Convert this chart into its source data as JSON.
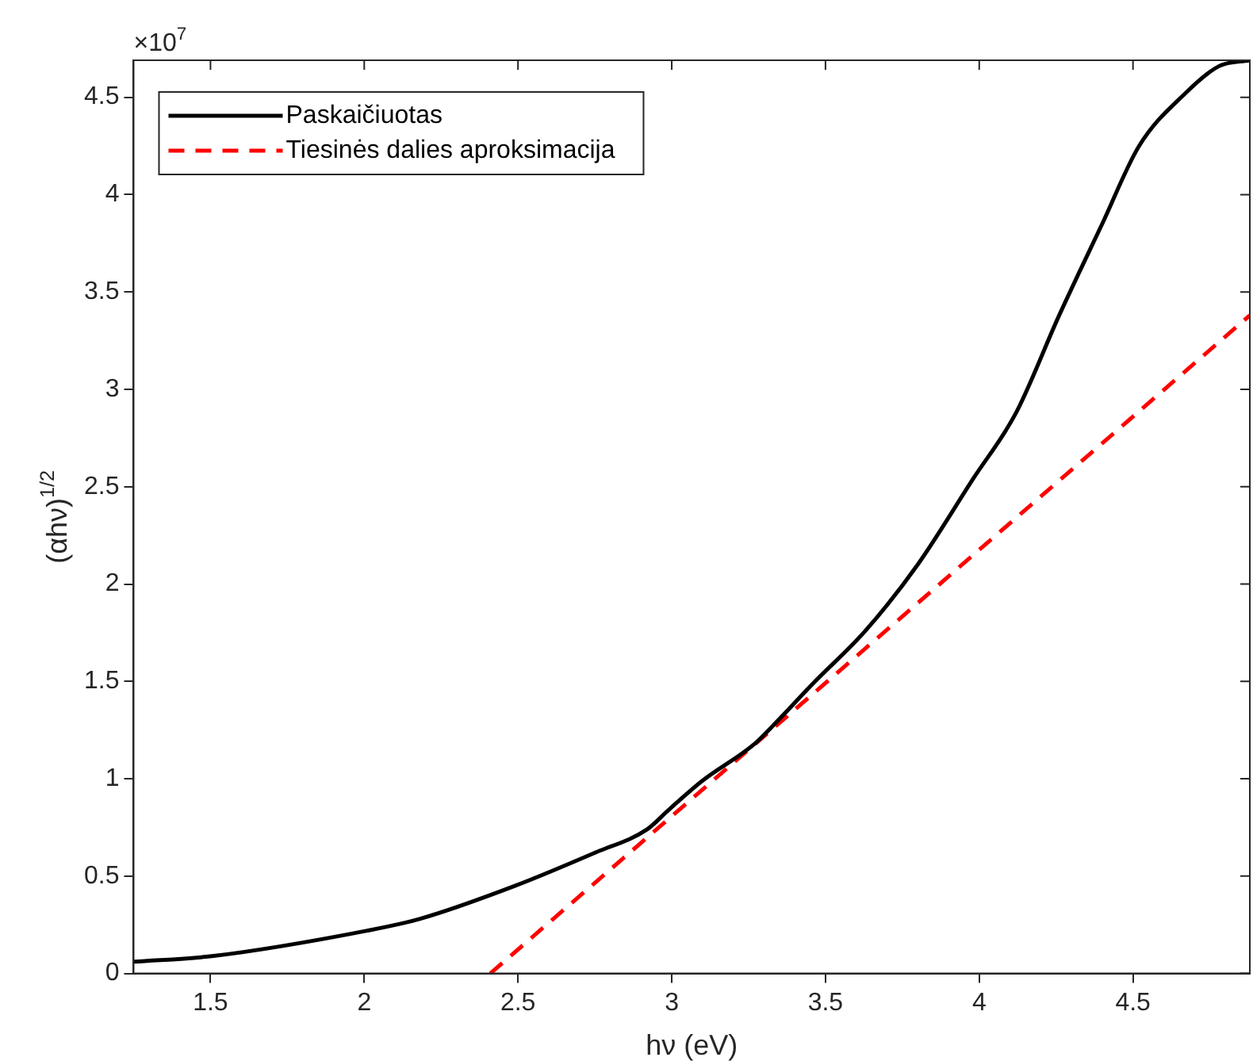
{
  "chart_data": {
    "type": "line",
    "xlabel": "hν (eV)",
    "ylabel": "(αhν)$^{1/2}$",
    "annotations": [
      "×10$^{7}$"
    ],
    "xlim": [
      1.25,
      4.88
    ],
    "xticks": [
      1.5,
      2,
      2.5,
      3,
      3.5,
      4,
      4.5
    ],
    "ylim": [
      0,
      4.69
    ],
    "yticks": [
      0,
      0.5,
      1,
      1.5,
      2,
      2.5,
      3,
      3.5,
      4,
      4.5
    ],
    "grid": false,
    "legend": "top left",
    "marker": "none",
    "series": [
      {
        "name": "Paskaičiuotas",
        "color": "#000000",
        "line_style": "solid",
        "x": [
          1.25,
          1.51,
          2.01,
          2.18,
          2.49,
          2.75,
          2.92,
          2.99,
          3.1,
          3.27,
          3.34,
          3.46,
          3.63,
          3.8,
          3.98,
          4.12,
          4.26,
          4.4,
          4.52,
          4.67,
          4.78,
          4.88
        ],
        "values": [
          0.06,
          0.09,
          0.22,
          0.28,
          0.45,
          0.62,
          0.74,
          0.84,
          0.99,
          1.18,
          1.29,
          1.49,
          1.76,
          2.1,
          2.54,
          2.88,
          3.38,
          3.85,
          4.25,
          4.52,
          4.66,
          4.69
        ]
      },
      {
        "name": "Tiesinės dalies aproksimacija",
        "color": "#ff0000",
        "line_style": "dashed",
        "x": [
          2.41,
          4.88
        ],
        "values": [
          0,
          3.38
        ]
      }
    ]
  }
}
